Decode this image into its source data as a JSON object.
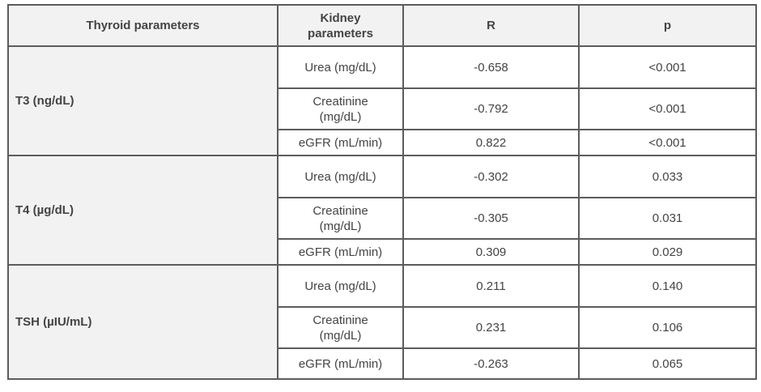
{
  "table": {
    "header": [
      "Thyroid parameters",
      "Kidney parameters",
      "R",
      "p"
    ],
    "groups": [
      {
        "label": "T3 (ng/dL)",
        "rows": [
          [
            "Urea (mg/dL)",
            "-0.658",
            "<0.001"
          ],
          [
            "Creatinine (mg/dL)",
            "-0.792",
            "<0.001"
          ],
          [
            "eGFR (mL/min)",
            "0.822",
            "<0.001"
          ]
        ]
      },
      {
        "label": "T4 (µg/dL)",
        "rows": [
          [
            "Urea (mg/dL)",
            "-0.302",
            "0.033"
          ],
          [
            "Creatinine (mg/dL)",
            "-0.305",
            "0.031"
          ],
          [
            "eGFR (mL/min)",
            "0.309",
            "0.029"
          ]
        ]
      },
      {
        "label": "TSH (µIU/mL)",
        "rows": [
          [
            "Urea (mg/dL)",
            "0.211",
            "0.140"
          ],
          [
            "Creatinine (mg/dL)",
            "0.231",
            "0.106"
          ],
          [
            "eGFR (mL/min)",
            "-0.263",
            "0.065"
          ]
        ]
      }
    ]
  }
}
